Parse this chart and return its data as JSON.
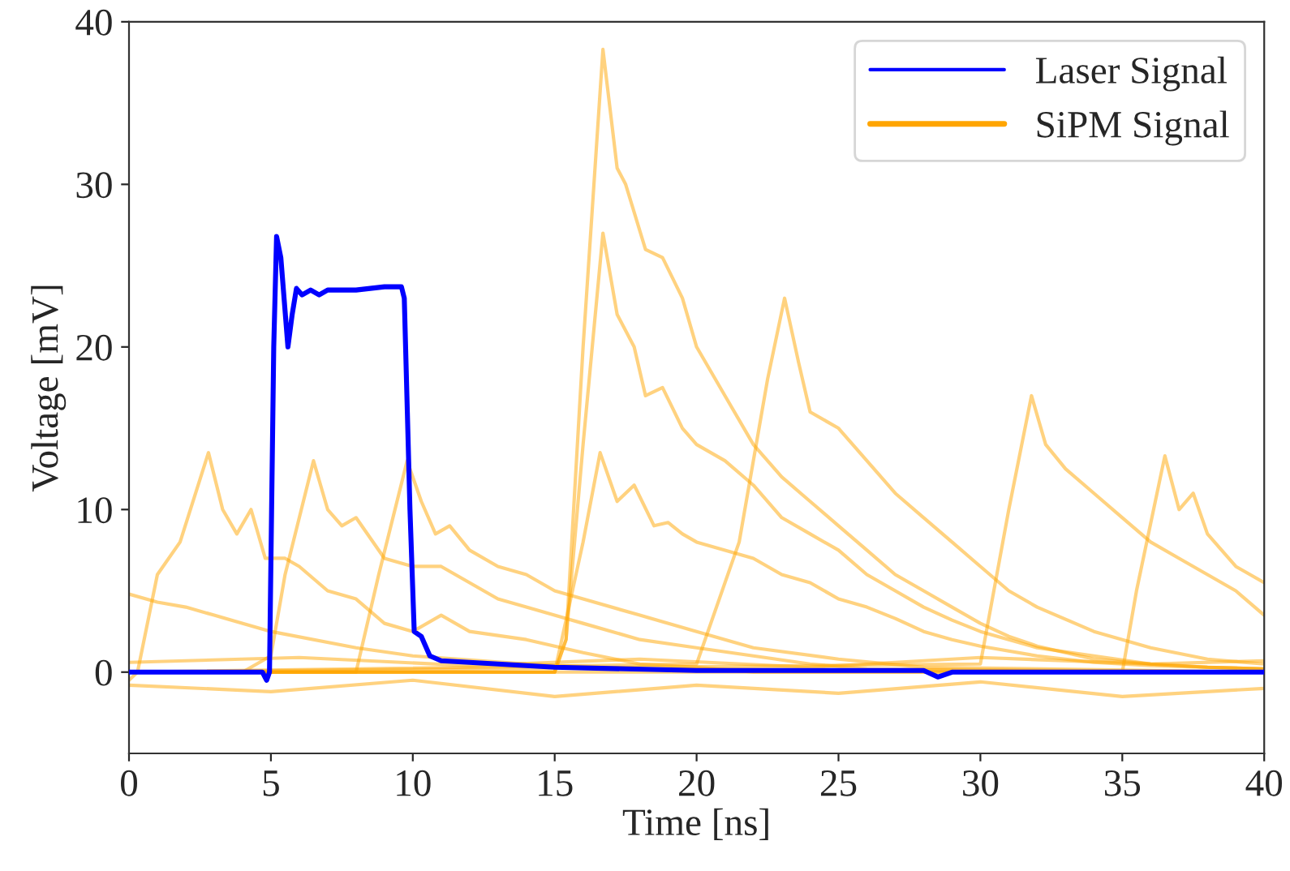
{
  "chart_data": {
    "type": "line",
    "xlabel": "Time [ns]",
    "ylabel": "Voltage [mV]",
    "xlim": [
      0,
      40
    ],
    "xticks": [
      0,
      5,
      10,
      15,
      20,
      25,
      30,
      35,
      40
    ],
    "ylim": [
      -5,
      40
    ],
    "yticks": [
      0,
      10,
      20,
      30,
      40
    ],
    "grid": false,
    "legend": "top right",
    "line_style": "solid",
    "marker": "none",
    "series": [
      {
        "name": "Laser Signal",
        "color": "#0000ff",
        "x": [
          0,
          4.7,
          4.85,
          4.95,
          5.1,
          5.2,
          5.35,
          5.6,
          5.75,
          5.9,
          6.1,
          6.4,
          6.7,
          7,
          8,
          9,
          9.6,
          9.7,
          9.9,
          10.05,
          10.3,
          10.6,
          11,
          13,
          15,
          20,
          28,
          28.5,
          29,
          40
        ],
        "values": [
          0,
          0,
          -0.5,
          0,
          20,
          26.8,
          25.5,
          20,
          22,
          23.6,
          23.2,
          23.5,
          23.2,
          23.5,
          23.5,
          23.7,
          23.7,
          23,
          10,
          2.5,
          2.2,
          1,
          0.7,
          0.5,
          0.3,
          0.1,
          0.1,
          -0.3,
          0,
          0
        ]
      },
      {
        "name": "SiPM Signal",
        "color": "#ffa500",
        "x": [
          0,
          15,
          15.4,
          16,
          16.7,
          17.2,
          17.5,
          18.2,
          18.8,
          19.5,
          20,
          21,
          22,
          23,
          24,
          25,
          26,
          27,
          28,
          29,
          30,
          31,
          32,
          33,
          34,
          36,
          38,
          40
        ],
        "values": [
          0,
          0,
          2,
          20,
          38.3,
          31,
          30,
          26,
          25.5,
          23,
          20,
          17,
          14,
          12,
          10.5,
          9,
          7.5,
          6,
          5,
          4,
          3,
          2.2,
          1.6,
          1.2,
          0.8,
          0.5,
          0.3,
          0.2
        ]
      },
      {
        "color": "#ffa500",
        "x": [
          0,
          15,
          15.4,
          16,
          16.7,
          17.2,
          17.8,
          18.2,
          18.8,
          19.5,
          20,
          21,
          22,
          23,
          24,
          25,
          26,
          27,
          28,
          29,
          30,
          31,
          32,
          34,
          36,
          38,
          40
        ],
        "values": [
          0,
          0,
          2,
          14,
          27,
          22,
          20,
          17,
          17.5,
          15,
          14,
          13,
          11.5,
          9.5,
          8.5,
          7.5,
          6,
          5,
          4,
          3.2,
          2.5,
          2,
          1.5,
          1,
          0.5,
          0.3,
          0.2
        ]
      },
      {
        "color": "#ffa500",
        "x": [
          0,
          15,
          15.5,
          16,
          16.6,
          17.2,
          17.8,
          18.5,
          19,
          19.5,
          20,
          21,
          22,
          23,
          24,
          25,
          26,
          27,
          28,
          29,
          30,
          32,
          34,
          36,
          40
        ],
        "values": [
          0,
          0,
          4,
          8,
          13.5,
          10.5,
          11.5,
          9,
          9.2,
          8.5,
          8,
          7.5,
          7,
          6,
          5.5,
          4.5,
          4,
          3.3,
          2.5,
          2,
          1.6,
          1,
          0.6,
          0.4,
          0.2
        ]
      },
      {
        "color": "#ffa500",
        "x": [
          0,
          0.3,
          1,
          1.8,
          2.8,
          3.3,
          3.8,
          4.3,
          4.8,
          5.5,
          6,
          7,
          8,
          9,
          10,
          11,
          12,
          14,
          16,
          18,
          20,
          22,
          40
        ],
        "values": [
          -0.5,
          0,
          6,
          8,
          13.5,
          10,
          8.5,
          10,
          7,
          7,
          6.5,
          5,
          4.5,
          3,
          2.5,
          3.5,
          2.5,
          2,
          1.2,
          0.5,
          0.3,
          0,
          0
        ]
      },
      {
        "color": "#ffa500",
        "x": [
          0,
          4,
          5,
          5.5,
          6.5,
          7,
          7.5,
          8,
          9,
          10,
          11,
          12,
          13,
          14,
          16,
          18,
          20,
          22,
          24,
          26,
          40
        ],
        "values": [
          0,
          0,
          1,
          6,
          13,
          10,
          9,
          9.5,
          7,
          6.5,
          6.5,
          5.5,
          4.5,
          4,
          3,
          2,
          1.5,
          1,
          0.5,
          0.2,
          0
        ]
      },
      {
        "color": "#ffa500",
        "x": [
          0,
          8,
          8.8,
          9.8,
          10.3,
          10.8,
          11.3,
          12,
          13,
          14,
          15,
          16,
          18,
          20,
          22,
          25,
          28,
          40
        ],
        "values": [
          0,
          0,
          6,
          13,
          10.5,
          8.5,
          9,
          7.5,
          6.5,
          6,
          5,
          4.5,
          3.5,
          2.5,
          1.5,
          0.8,
          0.3,
          0
        ]
      },
      {
        "color": "#ffa500",
        "x": [
          0,
          1,
          2,
          3,
          5,
          8,
          10,
          14,
          18,
          40
        ],
        "values": [
          4.8,
          4.3,
          4,
          3.5,
          2.5,
          1.5,
          1,
          0.5,
          0.2,
          0
        ]
      },
      {
        "color": "#ffa500",
        "x": [
          0,
          20,
          21.5,
          22.5,
          23.1,
          23.6,
          24,
          25,
          26,
          27,
          28,
          29,
          30,
          31,
          32,
          34,
          36,
          38,
          40
        ],
        "values": [
          0,
          0.5,
          8,
          18,
          23,
          19,
          16,
          15,
          13,
          11,
          9.5,
          8,
          6.5,
          5,
          4,
          2.5,
          1.5,
          0.8,
          0.5
        ]
      },
      {
        "color": "#ffa500",
        "x": [
          0,
          30,
          31,
          31.8,
          32.3,
          33,
          34,
          35,
          36,
          37,
          38,
          39,
          40
        ],
        "values": [
          0,
          0.5,
          10,
          17,
          14,
          12.5,
          11,
          9.5,
          8,
          7,
          6,
          5,
          3.5
        ]
      },
      {
        "color": "#ffa500",
        "x": [
          0,
          35,
          35.5,
          36.5,
          37,
          37.5,
          38,
          39,
          40
        ],
        "values": [
          0,
          0,
          5,
          13.3,
          10,
          11,
          8.5,
          6.5,
          5.5
        ]
      },
      {
        "color": "#ffa500",
        "x": [
          0,
          5,
          10,
          15,
          20,
          25,
          30,
          35,
          40
        ],
        "values": [
          -0.8,
          -1.2,
          -0.5,
          -1.5,
          -0.8,
          -1.3,
          -0.6,
          -1.5,
          -1
        ]
      },
      {
        "color": "#ffa500",
        "x": [
          0,
          6,
          12,
          18,
          24,
          30,
          36,
          40
        ],
        "values": [
          0.6,
          0.9,
          0.4,
          0.8,
          0.3,
          0.9,
          0.5,
          0.7
        ]
      }
    ]
  }
}
